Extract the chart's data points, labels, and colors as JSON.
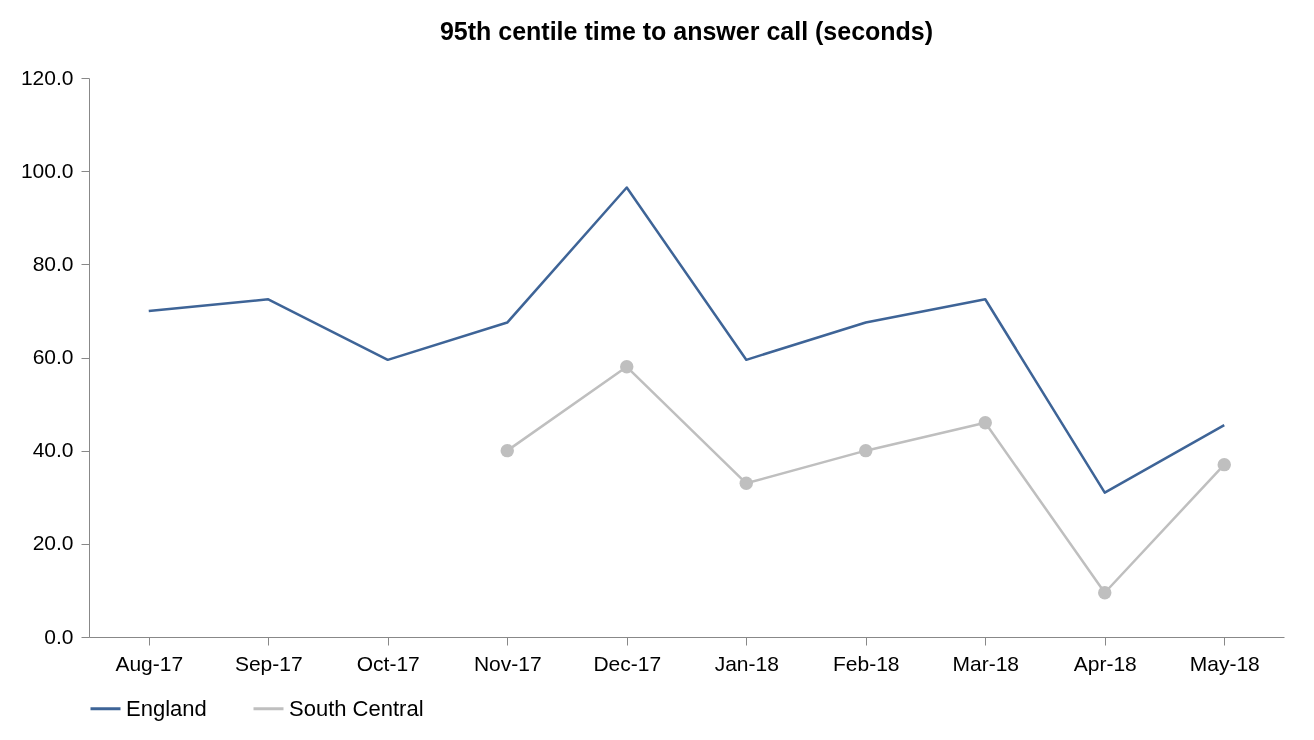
{
  "chart_data": {
    "type": "line",
    "title": "95th centile time to answer call (seconds)",
    "categories": [
      "Aug-17",
      "Sep-17",
      "Oct-17",
      "Nov-17",
      "Dec-17",
      "Jan-18",
      "Feb-18",
      "Mar-18",
      "Apr-18",
      "May-18"
    ],
    "series": [
      {
        "name": "England",
        "color": "#3e6497",
        "marker": "none",
        "values": [
          70,
          72.5,
          59.5,
          67.5,
          96.5,
          59.5,
          67.5,
          72.5,
          31,
          45.5
        ]
      },
      {
        "name": "South Central",
        "color": "#bfbfbf",
        "marker": "circle",
        "values": [
          null,
          null,
          null,
          40,
          58,
          33,
          40,
          46,
          9.5,
          37
        ]
      }
    ],
    "ylim": [
      0,
      120
    ],
    "yticks": [
      {
        "value": 0,
        "label": "0.0"
      },
      {
        "value": 20,
        "label": "20.0"
      },
      {
        "value": 40,
        "label": "40.0"
      },
      {
        "value": 60,
        "label": "60.0"
      },
      {
        "value": 80,
        "label": "80.0"
      },
      {
        "value": 100,
        "label": "100.0"
      },
      {
        "value": 120,
        "label": "120.0"
      }
    ],
    "grid": false,
    "legend": "bottom"
  }
}
